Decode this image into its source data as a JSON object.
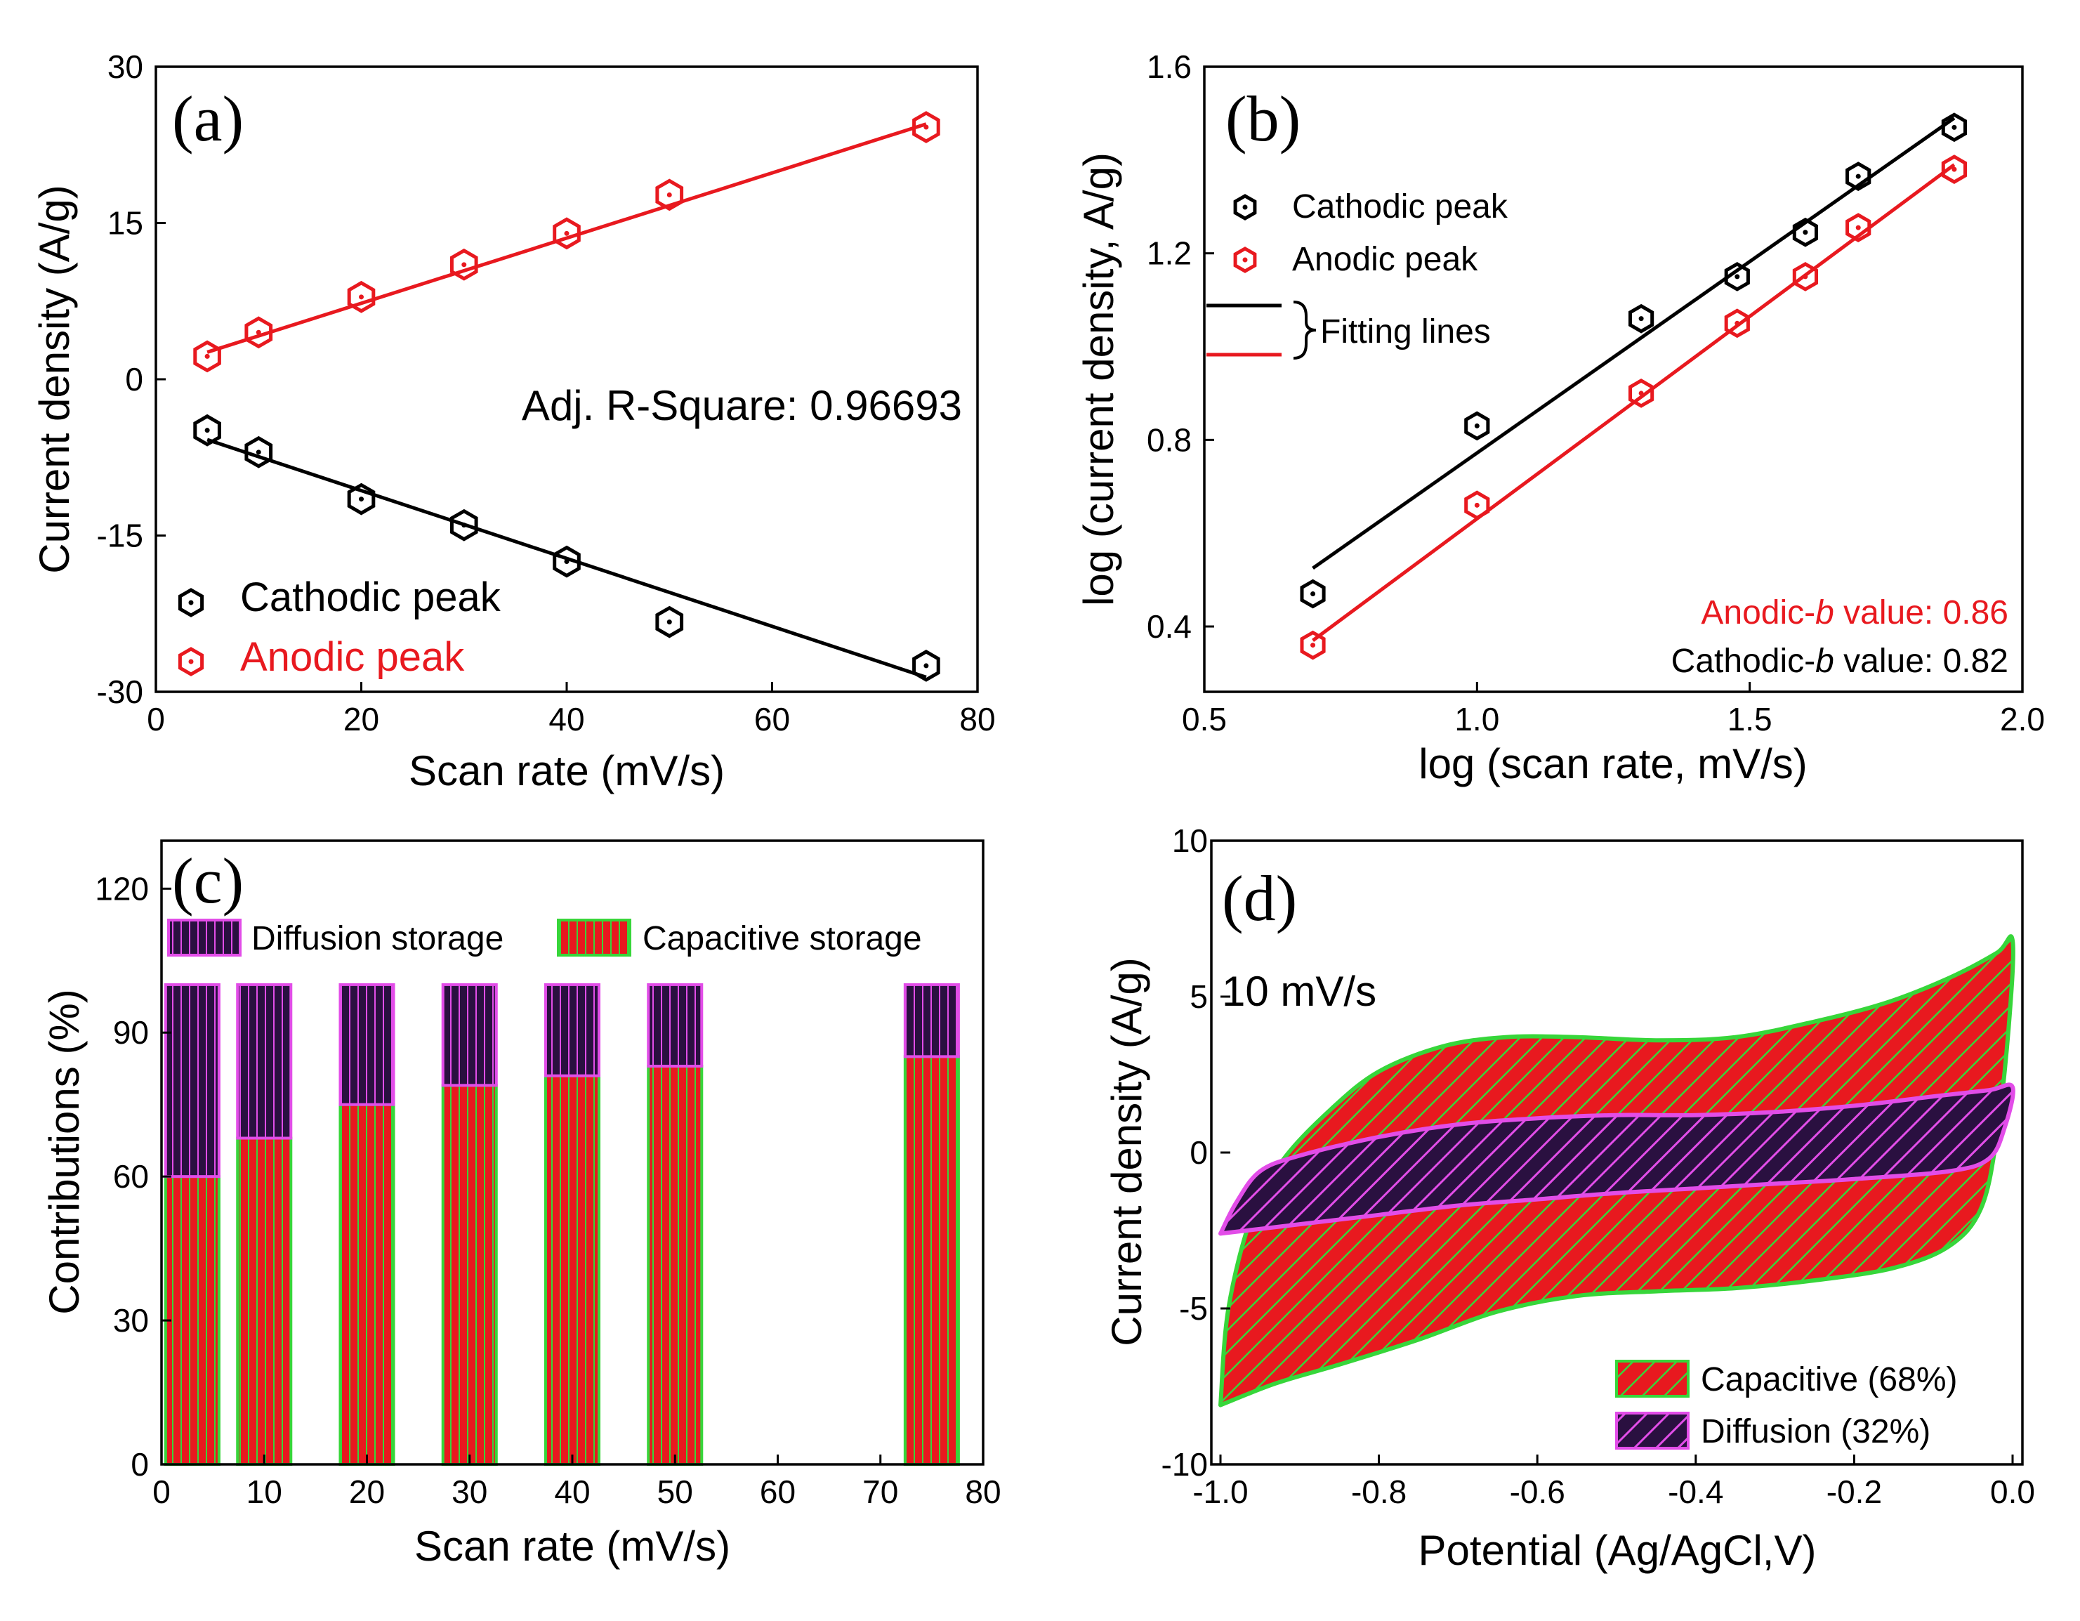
{
  "chart_data": [
    {
      "id": "a",
      "type": "scatter",
      "panel_label": "(a)",
      "xlabel": "Scan rate (mV/s)",
      "ylabel": "Current density (A/g)",
      "xlim": [
        0,
        80
      ],
      "ylim": [
        -30,
        30
      ],
      "xticks": [
        "0",
        "20",
        "40",
        "60",
        "80"
      ],
      "yticks": [
        "-30",
        "-15",
        "0",
        "15",
        "30"
      ],
      "annotation": "Adj. R-Square: 0.96693",
      "series": [
        {
          "name": "Cathodic peak",
          "color": "#000000",
          "x": [
            5,
            10,
            20,
            30,
            40,
            50,
            75
          ],
          "y": [
            -4.9,
            -7.0,
            -11.5,
            -14.0,
            -17.5,
            -23.3,
            -27.5
          ],
          "fit": [
            [
              5,
              -5.8
            ],
            [
              75,
              -28.6
            ]
          ]
        },
        {
          "name": "Anodic peak",
          "color": "#e8191f",
          "x": [
            5,
            10,
            20,
            30,
            40,
            50,
            75
          ],
          "y": [
            2.2,
            4.5,
            7.9,
            11.0,
            14.0,
            17.7,
            24.2
          ],
          "fit": [
            [
              5,
              2.6
            ],
            [
              75,
              24.5
            ]
          ]
        }
      ]
    },
    {
      "id": "b",
      "type": "scatter",
      "panel_label": "(b)",
      "xlabel": "log (scan rate, mV/s)",
      "ylabel": "log (current density, A/g)",
      "xlim": [
        0.5,
        2.0
      ],
      "ylim": [
        0.26,
        1.6
      ],
      "xticks": [
        "0.5",
        "1.0",
        "1.5",
        "2.0"
      ],
      "yticks": [
        "0.4",
        "0.8",
        "1.2",
        "1.6"
      ],
      "fit_legend": "Fitting lines",
      "anodic_b_prefix": "Anodic-",
      "anodic_b_italic": "b",
      "anodic_b_suffix": " value: 0.86",
      "cathodic_b_prefix": "Cathodic-",
      "cathodic_b_italic": "b",
      "cathodic_b_suffix": " value: 0.82",
      "series": [
        {
          "name": "Cathodic peak",
          "color": "#000000",
          "x": [
            0.699,
            1.0,
            1.301,
            1.477,
            1.602,
            1.699,
            1.875
          ],
          "y": [
            0.47,
            0.83,
            1.06,
            1.15,
            1.245,
            1.365,
            1.47
          ],
          "fit": [
            [
              0.699,
              0.525
            ],
            [
              1.875,
              1.49
            ]
          ]
        },
        {
          "name": "Anodic peak",
          "color": "#e8191f",
          "x": [
            0.699,
            1.0,
            1.301,
            1.477,
            1.602,
            1.699,
            1.875
          ],
          "y": [
            0.36,
            0.66,
            0.9,
            1.05,
            1.15,
            1.255,
            1.38
          ],
          "fit": [
            [
              0.699,
              0.37
            ],
            [
              1.875,
              1.39
            ]
          ]
        }
      ]
    },
    {
      "id": "c",
      "type": "bar",
      "stacked": true,
      "panel_label": "(c)",
      "xlabel": "Scan rate (mV/s)",
      "ylabel": "Contributions (%)",
      "xlim": [
        0,
        80
      ],
      "ylim": [
        0,
        130
      ],
      "xticks": [
        "0",
        "10",
        "20",
        "30",
        "40",
        "50",
        "60",
        "70",
        "80"
      ],
      "yticks": [
        "0",
        "30",
        "60",
        "90",
        "120"
      ],
      "x": [
        3,
        10,
        20,
        30,
        40,
        50,
        75
      ],
      "series": [
        {
          "name": "Capacitive storage",
          "color": "#e8191f",
          "stripe": "#37d63a",
          "values": [
            60,
            68,
            75,
            79,
            81,
            83,
            85
          ]
        },
        {
          "name": "Diffusion storage",
          "color": "#2a1040",
          "stripe": "#e24de8",
          "values": [
            40,
            32,
            25,
            21,
            19,
            17,
            15
          ]
        }
      ]
    },
    {
      "id": "d",
      "type": "area",
      "panel_label": "(d)",
      "xlabel": "Potential (Ag/AgCl,V)",
      "ylabel": "Current density (A/g)",
      "xlim": [
        -1.0,
        0.0
      ],
      "ylim": [
        -10,
        10
      ],
      "xticks": [
        "-1.0",
        "-0.8",
        "-0.6",
        "-0.4",
        "-0.2",
        "0.0"
      ],
      "yticks": [
        "-10",
        "-5",
        "0",
        "5",
        "10"
      ],
      "annotation": "10 mV/s",
      "series": [
        {
          "name": "Capacitive (68%)",
          "color": "#e8191f",
          "edge": "#37d63a",
          "upper": [
            [
              -1.0,
              -8.1
            ],
            [
              -0.99,
              -5.0
            ],
            [
              -0.96,
              -2.0
            ],
            [
              -0.92,
              -0.2
            ],
            [
              -0.86,
              1.4
            ],
            [
              -0.8,
              2.6
            ],
            [
              -0.72,
              3.4
            ],
            [
              -0.64,
              3.7
            ],
            [
              -0.55,
              3.7
            ],
            [
              -0.45,
              3.6
            ],
            [
              -0.35,
              3.7
            ],
            [
              -0.25,
              4.2
            ],
            [
              -0.16,
              4.8
            ],
            [
              -0.08,
              5.6
            ],
            [
              -0.02,
              6.4
            ],
            [
              0.0,
              6.8
            ]
          ],
          "lower": [
            [
              0.0,
              6.8
            ],
            [
              -0.005,
              4.0
            ],
            [
              -0.02,
              0.5
            ],
            [
              -0.04,
              -1.8
            ],
            [
              -0.08,
              -3.0
            ],
            [
              -0.15,
              -3.7
            ],
            [
              -0.25,
              -4.1
            ],
            [
              -0.35,
              -4.35
            ],
            [
              -0.45,
              -4.45
            ],
            [
              -0.55,
              -4.6
            ],
            [
              -0.65,
              -5.1
            ],
            [
              -0.75,
              -6.0
            ],
            [
              -0.85,
              -6.8
            ],
            [
              -0.93,
              -7.4
            ],
            [
              -1.0,
              -8.1
            ]
          ]
        },
        {
          "name": "Diffusion (32%)",
          "color": "#2a1040",
          "edge": "#e24de8",
          "upper": [
            [
              -1.0,
              -2.6
            ],
            [
              -0.98,
              -1.6
            ],
            [
              -0.95,
              -0.6
            ],
            [
              -0.9,
              -0.1
            ],
            [
              -0.8,
              0.5
            ],
            [
              -0.7,
              0.9
            ],
            [
              -0.6,
              1.1
            ],
            [
              -0.5,
              1.2
            ],
            [
              -0.4,
              1.2
            ],
            [
              -0.3,
              1.3
            ],
            [
              -0.2,
              1.5
            ],
            [
              -0.1,
              1.8
            ],
            [
              -0.03,
              2.0
            ],
            [
              0.0,
              2.1
            ]
          ],
          "lower": [
            [
              0.0,
              2.1
            ],
            [
              -0.01,
              0.8
            ],
            [
              -0.03,
              -0.2
            ],
            [
              -0.08,
              -0.6
            ],
            [
              -0.2,
              -0.85
            ],
            [
              -0.3,
              -1.0
            ],
            [
              -0.4,
              -1.15
            ],
            [
              -0.5,
              -1.3
            ],
            [
              -0.6,
              -1.5
            ],
            [
              -0.7,
              -1.7
            ],
            [
              -0.8,
              -2.0
            ],
            [
              -0.9,
              -2.3
            ],
            [
              -1.0,
              -2.6
            ]
          ]
        }
      ]
    }
  ]
}
